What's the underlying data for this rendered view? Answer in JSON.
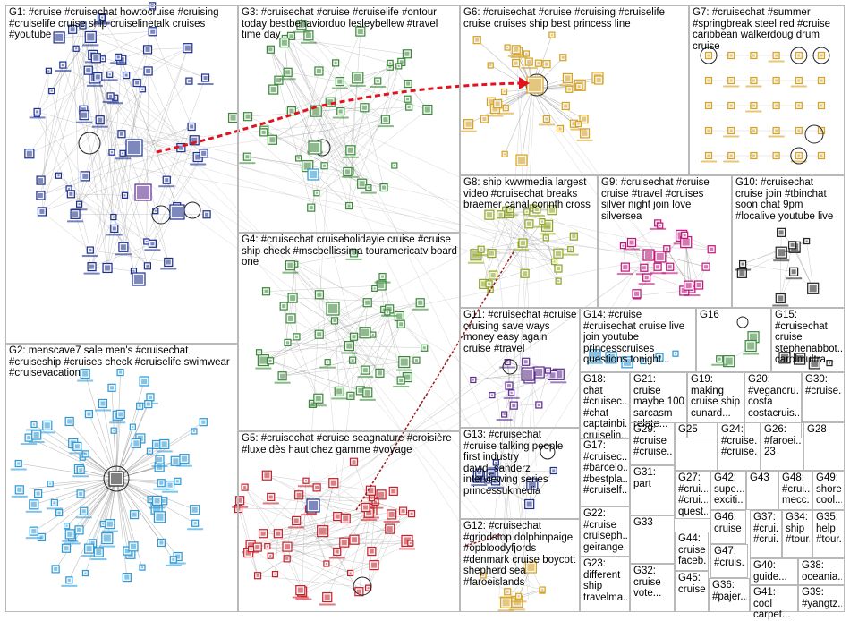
{
  "groups": [
    {
      "id": "G1",
      "label": "G1: #cruise #cruisechat howtocruise #cruising #cruiselife cruise ship cruiselinetalk cruises #youtube"
    },
    {
      "id": "G2",
      "label": "G2: menscave7 sale men's #cruisechat #cruiseship #cruises check #cruiselife swimwear #cruisevacation"
    },
    {
      "id": "G3",
      "label": "G3: #cruisechat #cruise #cruiselife #ontour today bestbehaviorduo lesleybellew #travel time day"
    },
    {
      "id": "G4",
      "label": "G4: #cruisechat cruiseholidayie cruise #cruise ship check #mscbellissima touramericatv board one"
    },
    {
      "id": "G5",
      "label": "G5: #cruisechat #cruise seagnature #croisière #luxe dès haut chez gamme #voyage"
    },
    {
      "id": "G6",
      "label": "G6: #cruisechat #cruise #cruising #cruiselife cruise cruises ship best princess line"
    },
    {
      "id": "G7",
      "label": "G7: #cruisechat #summer #springbreak steel red #cruise caribbean walkerdoug drum cruise"
    },
    {
      "id": "G8",
      "label": "G8: ship kwwmedia largest video #cruisechat breaks braemer canal corinth cross"
    },
    {
      "id": "G9",
      "label": "G9: #cruisechat #cruise cruise #travel #cruises silver night join love silversea"
    },
    {
      "id": "G10",
      "label": "G10: #cruisechat cruise join #tbinchat soon chat 9pm #localive youtube live"
    },
    {
      "id": "G11",
      "label": "G11: #cruisechat #cruise cruising save ways money easy again cruise #travel"
    },
    {
      "id": "G12",
      "label": "G12: #cruisechat #grindstop dolphinpaige #opbloodyfjords #denmark cruise boycott shepherd sea #faroeislands"
    },
    {
      "id": "G13",
      "label": "G13: #cruisechat #cruise talking people first industry david_sanderz interviewing series princessukmedia"
    },
    {
      "id": "G14",
      "label": "G14: #cruise #cruisechat cruise live join youtube princesscruises questions tonight..."
    },
    {
      "id": "G15",
      "label": "G15: #cruisechat cruise stephenabbot... carolmultra..."
    },
    {
      "id": "G16",
      "label": "G16"
    },
    {
      "id": "G17",
      "label": "G17: #cruisec... #barcelo... #bestpla... #cruiself..."
    },
    {
      "id": "G18",
      "label": "G18: chat #cruisec... #chat captainbi... cruiselin..."
    },
    {
      "id": "G19",
      "label": "G19: making cruise ship cunard..."
    },
    {
      "id": "G20",
      "label": "G20: #vegancru... costa costacruis..."
    },
    {
      "id": "G21",
      "label": "G21: cruise maybe 100 sarcasm relate..."
    },
    {
      "id": "G22",
      "label": "G22: #cruise cruiseph... geirange..."
    },
    {
      "id": "G23",
      "label": "G23: different ship travelma..."
    },
    {
      "id": "G24",
      "label": "G24: #cruise... #cruise..."
    },
    {
      "id": "G25",
      "label": "G25"
    },
    {
      "id": "G26",
      "label": "G26: #faroei... 23"
    },
    {
      "id": "G27",
      "label": "G27: #crui... #crui... quest..."
    },
    {
      "id": "G28",
      "label": "G28"
    },
    {
      "id": "G29",
      "label": "G29: #cruise #cruise..."
    },
    {
      "id": "G30",
      "label": "G30: #cruise..."
    },
    {
      "id": "G31",
      "label": "G31: part"
    },
    {
      "id": "G32",
      "label": "G32: cruise vote..."
    },
    {
      "id": "G33",
      "label": "G33"
    },
    {
      "id": "G34",
      "label": "G34: ship #tour..."
    },
    {
      "id": "G35",
      "label": "G35: help #tour..."
    },
    {
      "id": "G36",
      "label": "G36: #pajer..."
    },
    {
      "id": "G37",
      "label": "G37: #crui... #crui..."
    },
    {
      "id": "G38",
      "label": "G38: oceania..."
    },
    {
      "id": "G39",
      "label": "G39: #yangtz..."
    },
    {
      "id": "G40",
      "label": "G40: guide..."
    },
    {
      "id": "G41",
      "label": "G41: cool carpet..."
    },
    {
      "id": "G42",
      "label": "G42: supe... exciti..."
    },
    {
      "id": "G43",
      "label": "G43"
    },
    {
      "id": "G44",
      "label": "G44: cruise faceb..."
    },
    {
      "id": "G45",
      "label": "G45: cruise"
    },
    {
      "id": "G46",
      "label": "G46: cruise"
    },
    {
      "id": "G47",
      "label": "G47: #cruis..."
    },
    {
      "id": "G48",
      "label": "G48: #crui... mecc..."
    },
    {
      "id": "G49",
      "label": "G49: shore cool..."
    }
  ],
  "colors": {
    "panel_border": "#b9b9b9",
    "edge": "#8c8c8c",
    "highlight_edge": "#e0141e",
    "node_blue": "#1b2f8f",
    "node_green": "#3a8a3a",
    "node_red": "#c8202a",
    "node_olive": "#8ea61e",
    "node_magenta": "#c0137a",
    "node_cyan": "#2b9ad8",
    "node_purple": "#5c2b90",
    "node_gold": "#d7a21c",
    "node_dark": "#222222"
  }
}
